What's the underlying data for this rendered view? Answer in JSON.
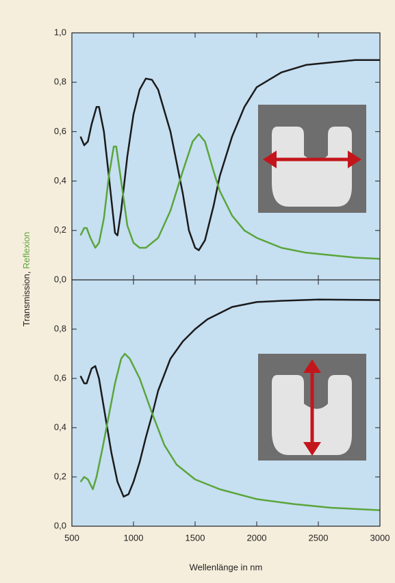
{
  "chart_data": [
    {
      "type": "line",
      "ylabel": [
        "Transmission,",
        "Reflexion"
      ],
      "ylabel_colors": [
        "#222222",
        "#5aa53a"
      ],
      "ylim": [
        0,
        1
      ],
      "yticks": [
        {
          "value": 0,
          "label": "0,0"
        },
        {
          "value": 0.2,
          "label": "0,2"
        },
        {
          "value": 0.4,
          "label": "0,4"
        },
        {
          "value": 0.6,
          "label": "0,6"
        },
        {
          "value": 0.8,
          "label": "0,8"
        },
        {
          "value": 1,
          "label": "1,0"
        }
      ],
      "series": [
        {
          "color": "#1a1a1a",
          "x": [
            570,
            600,
            630,
            660,
            700,
            720,
            760,
            800,
            850,
            870,
            900,
            950,
            1000,
            1050,
            1100,
            1150,
            1200,
            1300,
            1400,
            1450,
            1500,
            1530,
            1580,
            1650,
            1700,
            1800,
            1900,
            2000,
            2200,
            2400,
            2600,
            2800,
            3000
          ],
          "values": [
            0.58,
            0.545,
            0.56,
            0.63,
            0.7,
            0.7,
            0.6,
            0.42,
            0.19,
            0.18,
            0.28,
            0.5,
            0.67,
            0.77,
            0.815,
            0.81,
            0.77,
            0.6,
            0.35,
            0.2,
            0.13,
            0.12,
            0.16,
            0.3,
            0.42,
            0.58,
            0.7,
            0.78,
            0.84,
            0.87,
            0.88,
            0.89,
            0.89
          ]
        },
        {
          "color": "#5aa53a",
          "x": [
            570,
            600,
            620,
            650,
            690,
            720,
            760,
            800,
            840,
            860,
            900,
            950,
            1000,
            1050,
            1100,
            1200,
            1300,
            1400,
            1480,
            1530,
            1580,
            1650,
            1700,
            1800,
            1900,
            2000,
            2200,
            2400,
            2600,
            2800,
            3000
          ],
          "values": [
            0.18,
            0.21,
            0.21,
            0.17,
            0.13,
            0.15,
            0.25,
            0.42,
            0.54,
            0.54,
            0.4,
            0.22,
            0.15,
            0.13,
            0.13,
            0.17,
            0.28,
            0.44,
            0.56,
            0.59,
            0.56,
            0.44,
            0.36,
            0.26,
            0.2,
            0.17,
            0.13,
            0.11,
            0.1,
            0.09,
            0.085
          ]
        }
      ]
    },
    {
      "type": "line",
      "xlabel": "Wellenlänge in nm",
      "xlim": [
        500,
        3000
      ],
      "xticks": [
        500,
        1000,
        1500,
        2000,
        2500,
        3000
      ],
      "ylim": [
        0,
        1
      ],
      "yticks": [
        {
          "value": 0,
          "label": "0,0"
        },
        {
          "value": 0.2,
          "label": "0,2"
        },
        {
          "value": 0.4,
          "label": "0,4"
        },
        {
          "value": 0.6,
          "label": "0,6"
        },
        {
          "value": 0.8,
          "label": "0,8"
        }
      ],
      "series": [
        {
          "color": "#1a1a1a",
          "x": [
            570,
            600,
            620,
            660,
            690,
            720,
            770,
            820,
            870,
            920,
            960,
            1000,
            1050,
            1100,
            1150,
            1200,
            1300,
            1400,
            1500,
            1600,
            1800,
            2000,
            2200,
            2500,
            3000
          ],
          "values": [
            0.61,
            0.58,
            0.58,
            0.64,
            0.65,
            0.6,
            0.45,
            0.3,
            0.18,
            0.12,
            0.13,
            0.18,
            0.26,
            0.36,
            0.45,
            0.55,
            0.68,
            0.75,
            0.8,
            0.84,
            0.89,
            0.91,
            0.915,
            0.92,
            0.918
          ]
        },
        {
          "color": "#5aa53a",
          "x": [
            570,
            600,
            630,
            670,
            700,
            750,
            800,
            850,
            900,
            930,
            970,
            1050,
            1150,
            1250,
            1350,
            1500,
            1700,
            2000,
            2300,
            2600,
            3000
          ],
          "values": [
            0.18,
            0.2,
            0.19,
            0.15,
            0.2,
            0.32,
            0.45,
            0.58,
            0.68,
            0.7,
            0.68,
            0.6,
            0.46,
            0.33,
            0.25,
            0.19,
            0.15,
            0.11,
            0.09,
            0.075,
            0.065
          ]
        }
      ]
    }
  ]
}
